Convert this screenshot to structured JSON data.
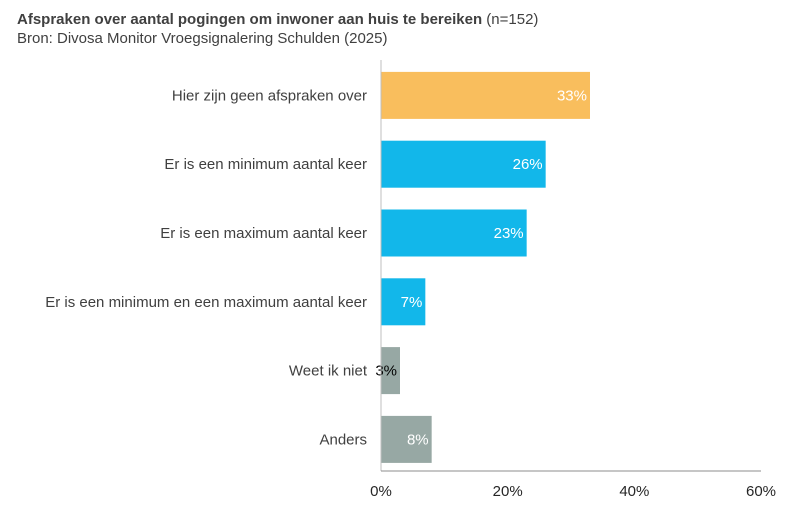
{
  "header": {
    "title": "Afspraken over aantal pogingen om inwoner aan huis te bereiken",
    "n_label": "(n=152)",
    "source": "Bron: Divosa Monitor Vroegsignalering Schulden (2025)"
  },
  "chart_data": {
    "type": "bar",
    "orientation": "horizontal",
    "title": "Afspraken over aantal pogingen om inwoner aan huis te bereiken (n=152)",
    "subtitle": "Bron: Divosa Monitor Vroegsignalering Schulden (2025)",
    "categories": [
      "Hier zijn geen afspraken over",
      "Er is een minimum aantal keer",
      "Er is een maximum aantal keer",
      "Er is een minimum en een maximum aantal keer",
      "Weet ik niet",
      "Anders"
    ],
    "values": [
      33,
      26,
      23,
      7,
      3,
      8
    ],
    "value_labels": [
      "33%",
      "26%",
      "23%",
      "7%",
      "3%",
      "8%"
    ],
    "bar_colors": [
      "#f9be5d",
      "#12b7ea",
      "#12b7ea",
      "#12b7ea",
      "#97a8a4",
      "#97a8a4"
    ],
    "label_colors": [
      "#ffffff",
      "#ffffff",
      "#ffffff",
      "#ffffff",
      "#000000",
      "#ffffff"
    ],
    "xlim": [
      0,
      60
    ],
    "xticks": [
      0,
      20,
      40,
      60
    ],
    "xtick_labels": [
      "0%",
      "20%",
      "40%",
      "60%"
    ],
    "grid": false,
    "legend": "none"
  }
}
